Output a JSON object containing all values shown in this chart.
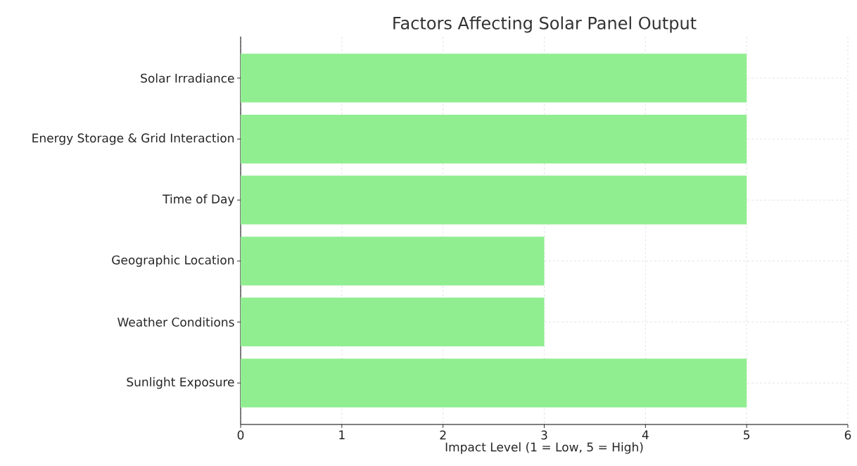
{
  "chart_data": {
    "type": "bar",
    "orientation": "horizontal",
    "title": "Factors Affecting Solar Panel Output",
    "xlabel": "Impact Level (1 = Low, 5 = High)",
    "categories": [
      "Solar Irradiance",
      "Energy Storage & Grid Interaction",
      "Time of Day",
      "Geographic Location",
      "Weather Conditions",
      "Sunlight Exposure"
    ],
    "values": [
      5,
      5,
      5,
      3,
      3,
      5
    ],
    "color": "#90ee90",
    "xlim": [
      0,
      6
    ],
    "xticks": [
      0,
      1,
      2,
      3,
      4,
      5,
      6
    ],
    "grid": true
  }
}
